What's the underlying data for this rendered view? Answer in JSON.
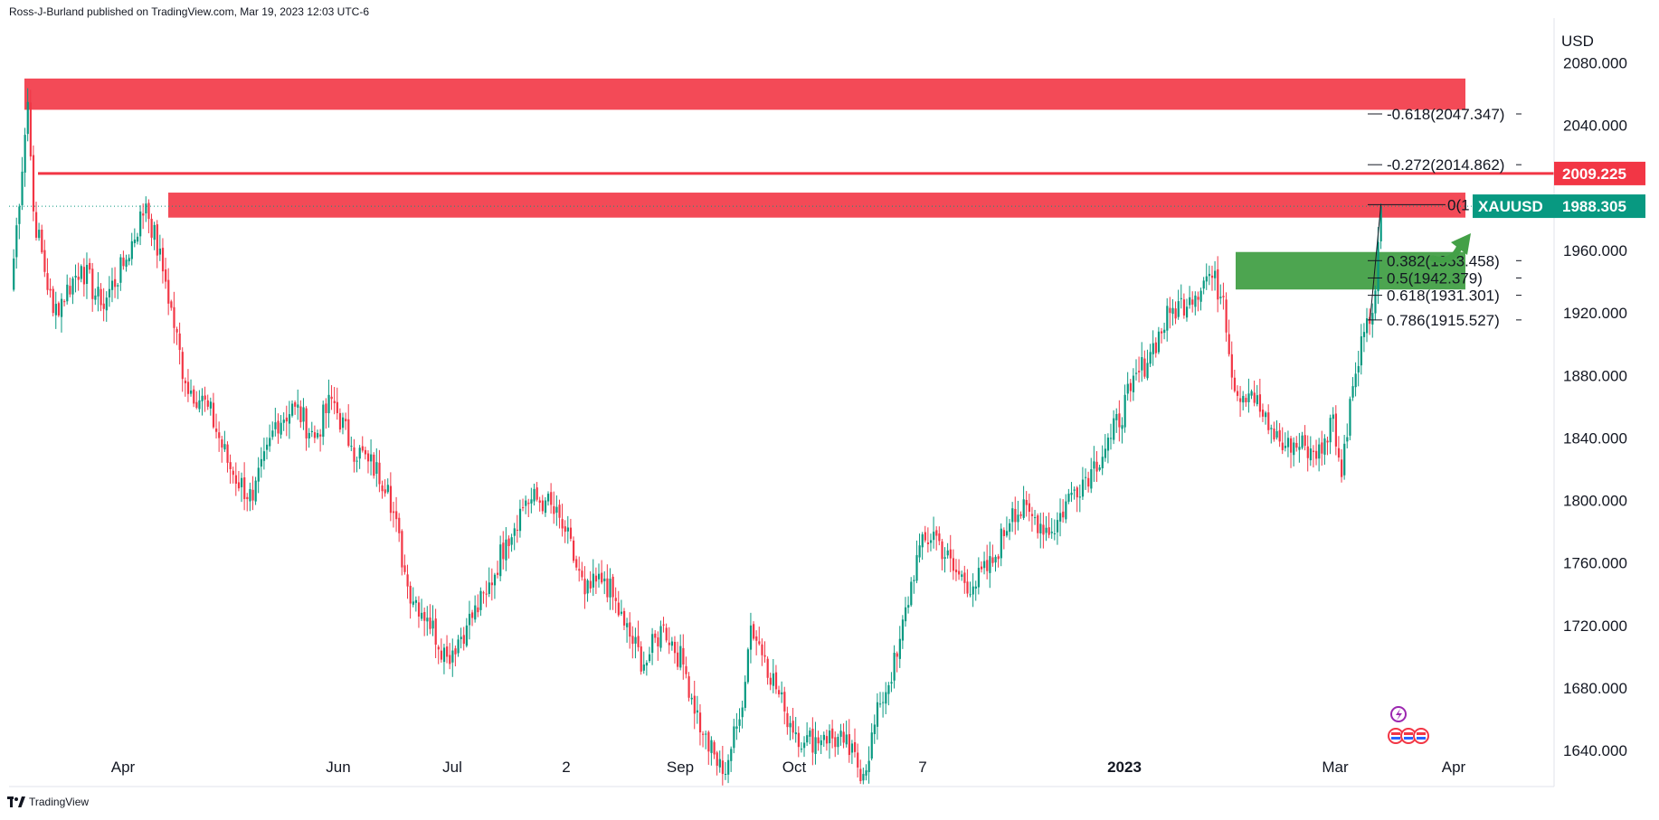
{
  "header": {
    "published_by": "Ross-J-Burland published on TradingView.com, Mar 19, 2023 12:03 UTC-6"
  },
  "footer": {
    "brand": "TradingView",
    "logo_icon": "tradingview-logo-icon"
  },
  "chart_data": {
    "type": "candlestick",
    "symbol": "XAUUSD",
    "currency": "USD",
    "price_axis": {
      "ylim": [
        1610,
        2100
      ],
      "ticks": [
        1640,
        1680,
        1720,
        1760,
        1800,
        1840,
        1880,
        1920,
        1960,
        2000,
        2040,
        2080
      ],
      "tick_labels": [
        "1640.000",
        "1680.000",
        "1720.000",
        "1760.000",
        "1800.000",
        "1840.000",
        "1880.000",
        "1920.000",
        "1960.000",
        "",
        "2040.000",
        "2080.000"
      ]
    },
    "time_axis": {
      "labels": [
        "Apr",
        "Jun",
        "Jul",
        "2",
        "Sep",
        "Oct",
        "7",
        "2023",
        "Mar",
        "Apr"
      ]
    },
    "price_tags": [
      {
        "label": "",
        "value": "2009.225",
        "price": 2009.225,
        "color": "#f23645"
      },
      {
        "label": "XAUUSD",
        "value": "1988.305",
        "price": 1988.305,
        "color": "#089981"
      }
    ],
    "fibonacci_levels": [
      {
        "label": "-0.618(2047.347)",
        "price": 2047.347
      },
      {
        "label": "-0.272(2014.862)",
        "price": 2014.862
      },
      {
        "label": "0(1",
        "price": 1989.3
      },
      {
        "label": "0.382(1953.458)",
        "price": 1953.458
      },
      {
        "label": "0.5(1942.379)",
        "price": 1942.379
      },
      {
        "label": "0.618(1931.301)",
        "price": 1931.301
      },
      {
        "label": "0.786(1915.527)",
        "price": 1915.527
      }
    ],
    "zones": [
      {
        "name": "upper-resistance-zone",
        "price_top": 2070,
        "price_bottom": 2050,
        "color": "#f23645"
      },
      {
        "name": "resistance-zone",
        "price_top": 1997,
        "price_bottom": 1981,
        "color": "#f23645"
      },
      {
        "name": "support-zone",
        "price_top": 1959,
        "price_bottom": 1935,
        "color": "#43a047"
      }
    ],
    "resistance_line_price": 2009.225,
    "colors": {
      "up": "#089981",
      "down": "#f23645",
      "arrow": "#43a047"
    },
    "swing_points": [
      [
        0,
        1935
      ],
      [
        6,
        2055
      ],
      [
        8,
        1985
      ],
      [
        15,
        1920
      ],
      [
        25,
        1950
      ],
      [
        32,
        1925
      ],
      [
        40,
        1950
      ],
      [
        48,
        1990
      ],
      [
        55,
        1940
      ],
      [
        62,
        1875
      ],
      [
        70,
        1860
      ],
      [
        78,
        1820
      ],
      [
        86,
        1800
      ],
      [
        94,
        1850
      ],
      [
        101,
        1860
      ],
      [
        108,
        1840
      ],
      [
        114,
        1865
      ],
      [
        121,
        1835
      ],
      [
        127,
        1825
      ],
      [
        134,
        1810
      ],
      [
        141,
        1745
      ],
      [
        148,
        1725
      ],
      [
        155,
        1700
      ],
      [
        162,
        1720
      ],
      [
        169,
        1740
      ],
      [
        176,
        1775
      ],
      [
        183,
        1800
      ],
      [
        190,
        1800
      ],
      [
        197,
        1780
      ],
      [
        204,
        1740
      ],
      [
        211,
        1750
      ],
      [
        218,
        1720
      ],
      [
        225,
        1695
      ],
      [
        232,
        1720
      ],
      [
        239,
        1695
      ],
      [
        246,
        1650
      ],
      [
        253,
        1625
      ],
      [
        259,
        1660
      ],
      [
        263,
        1720
      ],
      [
        268,
        1700
      ],
      [
        275,
        1665
      ],
      [
        282,
        1645
      ],
      [
        289,
        1650
      ],
      [
        296,
        1645
      ],
      [
        303,
        1625
      ],
      [
        309,
        1670
      ],
      [
        315,
        1700
      ],
      [
        322,
        1765
      ],
      [
        328,
        1780
      ],
      [
        335,
        1755
      ],
      [
        342,
        1745
      ],
      [
        349,
        1760
      ],
      [
        356,
        1795
      ],
      [
        363,
        1790
      ],
      [
        370,
        1780
      ],
      [
        377,
        1805
      ],
      [
        384,
        1820
      ],
      [
        391,
        1840
      ],
      [
        398,
        1870
      ],
      [
        405,
        1895
      ],
      [
        412,
        1920
      ],
      [
        419,
        1930
      ],
      [
        426,
        1945
      ],
      [
        431,
        1930
      ],
      [
        435,
        1870
      ],
      [
        441,
        1870
      ],
      [
        447,
        1845
      ],
      [
        453,
        1835
      ],
      [
        460,
        1835
      ],
      [
        466,
        1830
      ],
      [
        470,
        1855
      ],
      [
        473,
        1815
      ],
      [
        476,
        1865
      ],
      [
        480,
        1905
      ],
      [
        484,
        1920
      ],
      [
        487,
        1988.305
      ]
    ]
  }
}
